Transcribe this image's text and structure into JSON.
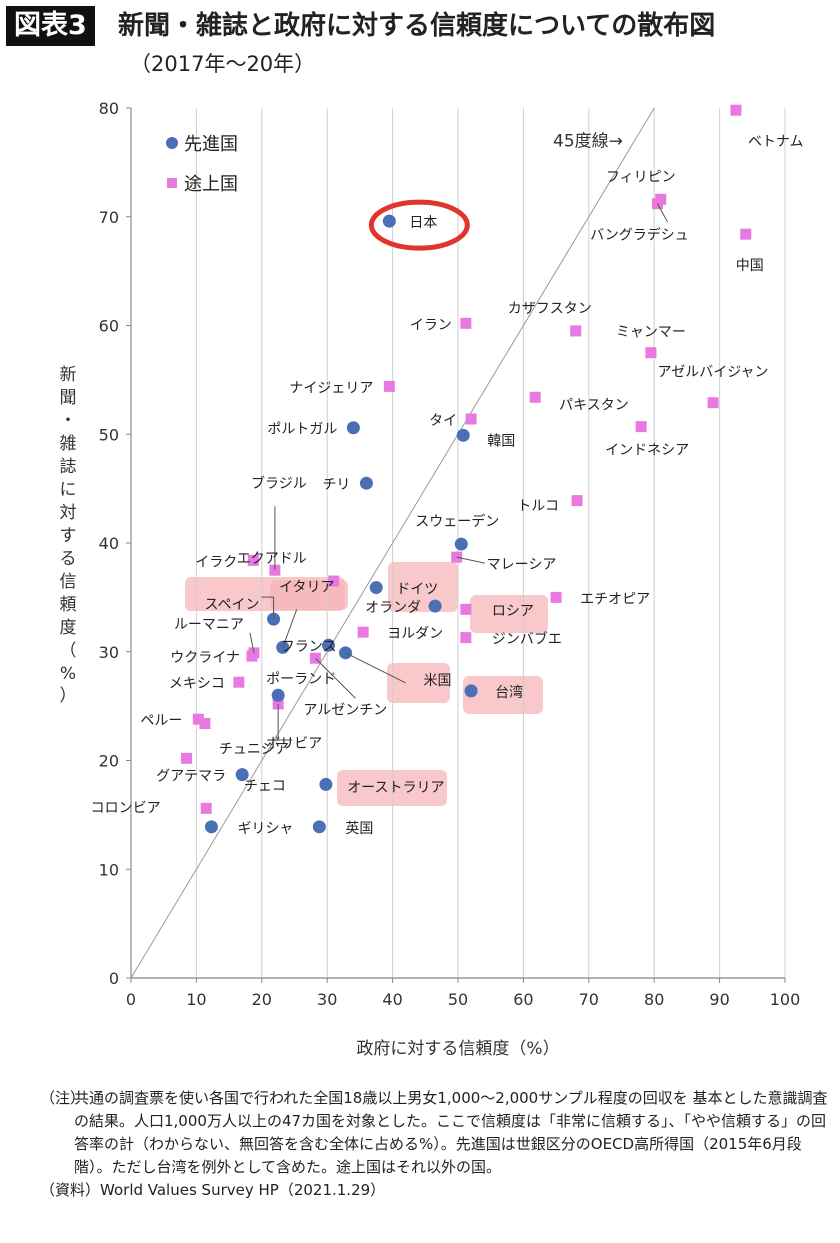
{
  "header": {
    "badge": "図表3",
    "title": "新聞・雑誌と政府に対する信頼度についての散布図",
    "subtitle": "（2017年〜20年）"
  },
  "colors": {
    "developed": "#4a6fb5",
    "developing": "#e879e0",
    "highlight": "#f5b6b8",
    "circle": "#e0342c",
    "diagonal": "#9a9a9a"
  },
  "chart_data": {
    "type": "scatter",
    "xlabel": "政府に対する信頼度（%）",
    "ylabel": "新聞・雑誌に対する信頼度（%）",
    "xlim": [
      0,
      100
    ],
    "ylim": [
      0,
      80
    ],
    "xticks": [
      0,
      10,
      20,
      30,
      40,
      50,
      60,
      70,
      80,
      90,
      100
    ],
    "yticks": [
      0,
      10,
      20,
      30,
      40,
      50,
      60,
      70,
      80
    ],
    "grid": "vertical",
    "legend_placement": "top-left",
    "diagonal_label": "45度線→",
    "series": [
      {
        "name": "先進国",
        "marker": "circle",
        "points": [
          {
            "label": "日本",
            "x": 39.5,
            "y": 69.6
          },
          {
            "label": "ポルトガル",
            "x": 34.0,
            "y": 50.6
          },
          {
            "label": "韓国",
            "x": 50.8,
            "y": 49.9
          },
          {
            "label": "チリ",
            "x": 36.0,
            "y": 45.5
          },
          {
            "label": "スウェーデン",
            "x": 50.5,
            "y": 39.9
          },
          {
            "label": "ドイツ",
            "x": 37.5,
            "y": 35.9
          },
          {
            "label": "オランダ",
            "x": 46.5,
            "y": 34.2
          },
          {
            "label": "スペイン",
            "x": 21.8,
            "y": 33.0
          },
          {
            "label": "イタリア",
            "x": 23.2,
            "y": 30.4
          },
          {
            "label": "フランス",
            "x": 30.2,
            "y": 30.6
          },
          {
            "label": "米国",
            "x": 32.8,
            "y": 29.9
          },
          {
            "label": "台湾",
            "x": 52.0,
            "y": 26.4
          },
          {
            "label": "ポーランド",
            "x": 22.5,
            "y": 26.0
          },
          {
            "label": "チェコ",
            "x": 29.8,
            "y": 17.8
          },
          {
            "label": "グアテマラ",
            "x": 17.0,
            "y": 18.7
          },
          {
            "label": "ギリシャ",
            "x": 12.3,
            "y": 13.9
          },
          {
            "label": "英国",
            "x": 28.8,
            "y": 13.9
          }
        ]
      },
      {
        "name": "途上国",
        "marker": "square",
        "points": [
          {
            "label": "ベトナム",
            "x": 92.5,
            "y": 79.8
          },
          {
            "label": "フィリピン",
            "x": 81.0,
            "y": 71.6
          },
          {
            "label": "バングラデシュ",
            "x": 80.5,
            "y": 71.2
          },
          {
            "label": "中国",
            "x": 94.0,
            "y": 68.4
          },
          {
            "label": "イラン",
            "x": 51.2,
            "y": 60.2
          },
          {
            "label": "カザフスタン",
            "x": 68.0,
            "y": 59.5
          },
          {
            "label": "ミャンマー",
            "x": 79.5,
            "y": 57.5
          },
          {
            "label": "ナイジェリア",
            "x": 39.5,
            "y": 54.4
          },
          {
            "label": "パキスタン",
            "x": 61.8,
            "y": 53.4
          },
          {
            "label": "アゼルバイジャン",
            "x": 89.0,
            "y": 52.9
          },
          {
            "label": "タイ",
            "x": 52.0,
            "y": 51.4
          },
          {
            "label": "インドネシア",
            "x": 78.0,
            "y": 50.7
          },
          {
            "label": "トルコ",
            "x": 68.2,
            "y": 43.9
          },
          {
            "label": "マレーシア",
            "x": 49.8,
            "y": 38.7
          },
          {
            "label": "イラク",
            "x": 18.7,
            "y": 38.4
          },
          {
            "label": "ブラジル",
            "x": 22.0,
            "y": 37.5
          },
          {
            "label": "エクアドル",
            "x": 31.0,
            "y": 36.5
          },
          {
            "label": "エチオピア",
            "x": 65.0,
            "y": 35.0
          },
          {
            "label": "ロシア",
            "x": 51.2,
            "y": 33.9
          },
          {
            "label": "ヨルダン",
            "x": 35.5,
            "y": 31.8
          },
          {
            "label": "ジンバブエ",
            "x": 51.2,
            "y": 31.3
          },
          {
            "label": "ルーマニア",
            "x": 18.8,
            "y": 29.9
          },
          {
            "label": "ウクライナ",
            "x": 18.5,
            "y": 29.6
          },
          {
            "label": "アルゼンチン",
            "x": 28.2,
            "y": 29.4
          },
          {
            "label": "メキシコ",
            "x": 16.5,
            "y": 27.2
          },
          {
            "label": "ボリビア",
            "x": 22.5,
            "y": 25.2
          },
          {
            "label": "ペルー",
            "x": 10.3,
            "y": 23.8
          },
          {
            "label": "チュニジア",
            "x": 11.3,
            "y": 23.4
          },
          {
            "label": "コロンビア",
            "x": 8.5,
            "y": 20.2
          },
          {
            "label": "コロンビア2",
            "x": 11.5,
            "y": 15.6
          }
        ]
      }
    ],
    "callouts": [
      "日本"
    ],
    "highlighted": [
      "スペイン",
      "イタリア",
      "ドイツ",
      "ロシア",
      "米国",
      "台湾",
      "オーストラリア"
    ]
  },
  "notes": [
    {
      "tag": "（注）",
      "text": "共通の調査票を使い各国で行われた全国18歳以上男女1,000〜2,000サンプル程度の回収を 基本とした意識調査の結果。人口1,000万人以上の47カ国を対象とした。ここで信頼度は「非常に信頼する」、「やや信頼する」の回答率の計（わからない、無回答を含む全体に占める%）。先進国は世銀区分のOECD高所得国（2015年6月段階）。ただし台湾を例外として含めた。途上国はそれ以外の国。"
    },
    {
      "tag": "（資料）",
      "text": "World Values Survey HP（2021.1.29）"
    }
  ],
  "extra_labels": {
    "オーストラリア": {
      "x": 30,
      "y": 17.3
    }
  }
}
